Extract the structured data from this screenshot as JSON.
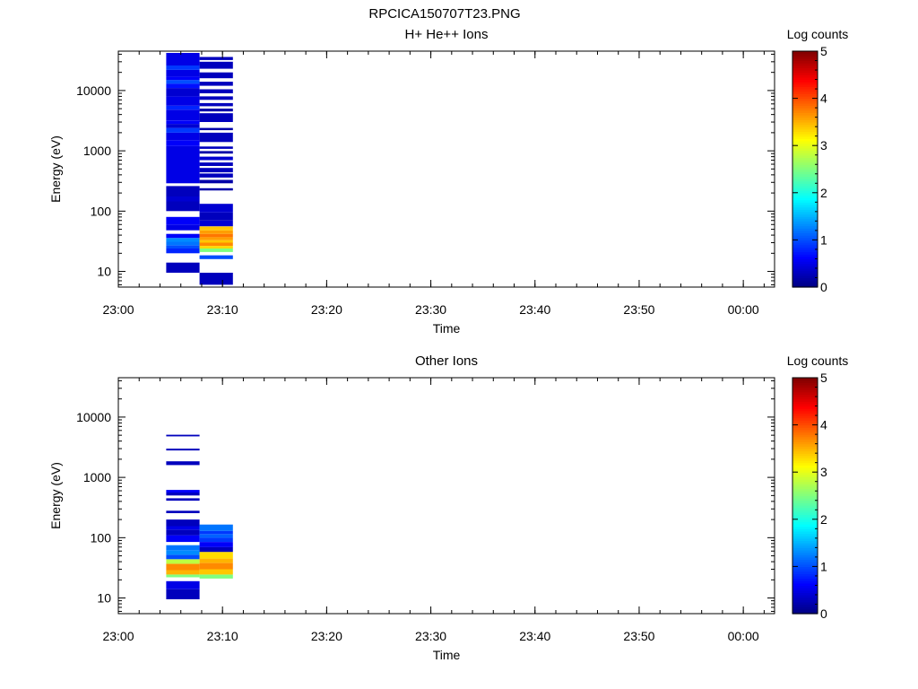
{
  "figure_title": "RPCICA150707T23.PNG",
  "chart_data": [
    {
      "type": "heatmap",
      "title": "H+ He++ Ions",
      "xlabel": "Time",
      "ylabel": "Energy (eV)",
      "xlim": [
        "23:00",
        "00:03"
      ],
      "x_tick_labels": [
        "23:00",
        "23:10",
        "23:20",
        "23:30",
        "23:40",
        "23:50",
        "00:00"
      ],
      "ylim": [
        5.5,
        45000
      ],
      "y_scale": "log",
      "y_tick_labels": [
        "10",
        "100",
        "1000",
        "10000"
      ],
      "colorbar": {
        "label": "Log counts",
        "min": 0,
        "max": 5,
        "tick_labels": [
          "0",
          "1",
          "2",
          "3",
          "4",
          "5"
        ]
      },
      "columns": [
        {
          "t0": "23:04.6",
          "t1": "23:07.8",
          "cells": [
            [
              9.5,
              14,
              0.3
            ],
            [
              20,
              24,
              0.8
            ],
            [
              24,
              27,
              1.0
            ],
            [
              27,
              31,
              1.2
            ],
            [
              31,
              36,
              1.3
            ],
            [
              36,
              42,
              0.6
            ],
            [
              48,
              60,
              0.5
            ],
            [
              60,
              80,
              0.6
            ],
            [
              100,
              145,
              0.3
            ],
            [
              145,
              175,
              0.4
            ],
            [
              175,
              260,
              0.3
            ],
            [
              290,
              1200,
              0.5
            ],
            [
              1200,
              1500,
              0.6
            ],
            [
              1500,
              2000,
              0.5
            ],
            [
              2000,
              2400,
              0.9
            ],
            [
              2400,
              2800,
              0.4
            ],
            [
              2800,
              3200,
              0.6
            ],
            [
              3200,
              4800,
              0.5
            ],
            [
              4800,
              5600,
              0.8
            ],
            [
              5600,
              8000,
              0.5
            ],
            [
              8000,
              11000,
              0.4
            ],
            [
              11000,
              13000,
              0.7
            ],
            [
              13000,
              15000,
              1.0
            ],
            [
              15000,
              17000,
              0.6
            ],
            [
              17000,
              22000,
              0.5
            ],
            [
              22000,
              26000,
              0.9
            ],
            [
              26000,
              42000,
              0.5
            ]
          ]
        },
        {
          "t0": "23:07.8",
          "t1": "23:11.0",
          "cells": [
            [
              6,
              9.5,
              0.3
            ],
            [
              16,
              18.5,
              1.0
            ],
            [
              21,
              24,
              2.5
            ],
            [
              24,
              26.5,
              3.3
            ],
            [
              26.5,
              30,
              3.7
            ],
            [
              30,
              33,
              3.4
            ],
            [
              33,
              37,
              3.6
            ],
            [
              37,
              42,
              3.8
            ],
            [
              42,
              48,
              3.6
            ],
            [
              48,
              56,
              3.4
            ],
            [
              56,
              70,
              0.4
            ],
            [
              70,
              95,
              0.3
            ],
            [
              95,
              132,
              0.4
            ],
            [
              220,
              240,
              0.2
            ],
            [
              290,
              330,
              0.2
            ],
            [
              360,
              420,
              0.3
            ],
            [
              440,
              520,
              0.3
            ],
            [
              560,
              640,
              0.3
            ],
            [
              700,
              800,
              0.4
            ],
            [
              900,
              990,
              0.2
            ],
            [
              1080,
              1180,
              0.3
            ],
            [
              1400,
              2000,
              0.3
            ],
            [
              2200,
              2400,
              0.2
            ],
            [
              3000,
              4200,
              0.3
            ],
            [
              4500,
              5000,
              0.2
            ],
            [
              5500,
              6200,
              0.3
            ],
            [
              7000,
              8000,
              0.3
            ],
            [
              9000,
              10500,
              0.3
            ],
            [
              12000,
              14000,
              0.3
            ],
            [
              16000,
              20000,
              0.3
            ],
            [
              23000,
              30000,
              0.3
            ],
            [
              32000,
              36000,
              0.3
            ]
          ]
        }
      ]
    },
    {
      "type": "heatmap",
      "title": "Other Ions",
      "xlabel": "Time",
      "ylabel": "Energy (eV)",
      "xlim": [
        "23:00",
        "00:03"
      ],
      "x_tick_labels": [
        "23:00",
        "23:10",
        "23:20",
        "23:30",
        "23:40",
        "23:50",
        "00:00"
      ],
      "ylim": [
        5.5,
        45000
      ],
      "y_scale": "log",
      "y_tick_labels": [
        "10",
        "100",
        "1000",
        "10000"
      ],
      "colorbar": {
        "label": "Log counts",
        "min": 0,
        "max": 5,
        "tick_labels": [
          "0",
          "1",
          "2",
          "3",
          "4",
          "5"
        ]
      },
      "columns": [
        {
          "t0": "23:04.6",
          "t1": "23:07.8",
          "cells": [
            [
              9.5,
              14,
              0.3
            ],
            [
              14,
              19,
              0.5
            ],
            [
              22,
              24.5,
              2.5
            ],
            [
              24.5,
              29,
              3.5
            ],
            [
              29,
              37,
              3.7
            ],
            [
              37,
              44,
              2.8
            ],
            [
              44,
              52,
              1.0
            ],
            [
              52,
              62,
              1.3
            ],
            [
              62,
              75,
              1.2
            ],
            [
              85,
              110,
              0.6
            ],
            [
              110,
              135,
              0.3
            ],
            [
              135,
              155,
              0.5
            ],
            [
              155,
              200,
              0.3
            ],
            [
              255,
              280,
              0.3
            ],
            [
              410,
              450,
              0.3
            ],
            [
              500,
              560,
              0.3
            ],
            [
              560,
              620,
              0.6
            ],
            [
              1600,
              1850,
              0.3
            ],
            [
              2800,
              3000,
              0.3
            ],
            [
              4800,
              5100,
              0.3
            ]
          ]
        },
        {
          "t0": "23:07.8",
          "t1": "23:11.0",
          "cells": [
            [
              21,
              24.5,
              2.5
            ],
            [
              24.5,
              30,
              3.4
            ],
            [
              30,
              38,
              3.7
            ],
            [
              38,
              45,
              3.5
            ],
            [
              45,
              58,
              3.3
            ],
            [
              58,
              70,
              0.3
            ],
            [
              70,
              85,
              0.6
            ],
            [
              85,
              100,
              0.9
            ],
            [
              100,
              115,
              1.1
            ],
            [
              115,
              130,
              0.9
            ],
            [
              130,
              165,
              1.2
            ]
          ]
        }
      ]
    }
  ]
}
